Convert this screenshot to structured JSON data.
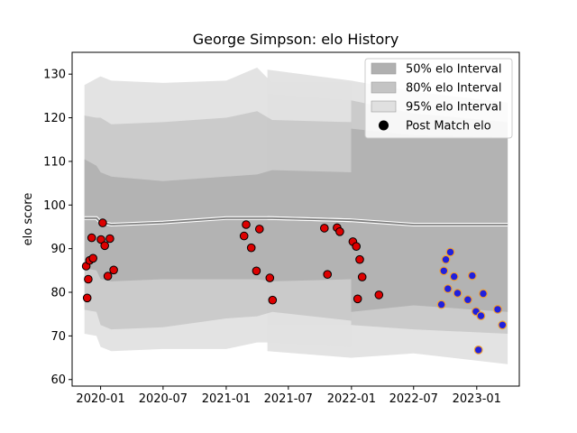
{
  "chart_data": {
    "type": "scatter",
    "title": "George Simpson: elo History",
    "xlabel": "",
    "ylabel": "elo score",
    "xlim": [
      "2019-10-10",
      "2023-05-05"
    ],
    "ylim": [
      58.5,
      135
    ],
    "x_ticks": [
      "2020-01-01",
      "2020-07-01",
      "2021-01-01",
      "2021-07-01",
      "2022-01-01",
      "2022-07-01",
      "2023-01-01"
    ],
    "x_tick_labels": [
      "2020-01",
      "2020-07",
      "2021-01",
      "2021-07",
      "2022-01",
      "2022-07",
      "2023-01"
    ],
    "y_ticks": [
      60,
      70,
      80,
      90,
      100,
      110,
      120,
      130
    ],
    "y_tick_labels": [
      "60",
      "70",
      "80",
      "90",
      "100",
      "110",
      "120",
      "130"
    ],
    "legend_position": "top-right",
    "legend": [
      {
        "label": "50% elo Interval",
        "color": "#b0b0b0",
        "kind": "patch"
      },
      {
        "label": "80% elo Interval",
        "color": "#c4c4c4",
        "kind": "patch"
      },
      {
        "label": "95% elo Interval",
        "color": "#e0e0e0",
        "kind": "patch"
      },
      {
        "label": "Post Match elo",
        "color": "#000000",
        "kind": "marker"
      }
    ],
    "colors": {
      "band50": "#b0b0b0",
      "band80": "#c8c8c8",
      "band95": "#e2e2e2",
      "mean_line": "#808080",
      "past_fill": "#dd0000",
      "past_edge": "#000000",
      "future_fill": "#2020dd",
      "future_edge": "#f0a030"
    },
    "history_bands": {
      "x": [
        "2019-11-15",
        "2019-12-20",
        "2020-01-01",
        "2020-02-01",
        "2020-07-01",
        "2021-01-01",
        "2021-04-01",
        "2021-05-15",
        "2021-12-31"
      ],
      "mean": [
        97.0,
        97.0,
        96.0,
        95.5,
        96.0,
        97.0,
        97.0,
        97.0,
        96.5
      ],
      "p50": [
        [
          85.5,
          110.5
        ],
        [
          85.0,
          109.0
        ],
        [
          83.0,
          107.5
        ],
        [
          82.5,
          106.5
        ],
        [
          83.0,
          105.5
        ],
        [
          83.0,
          106.5
        ],
        [
          83.0,
          107.0
        ],
        [
          82.5,
          108.0
        ],
        [
          83.0,
          107.5
        ]
      ],
      "p80": [
        [
          76.0,
          120.5
        ],
        [
          75.5,
          120.0
        ],
        [
          72.5,
          120.0
        ],
        [
          71.5,
          118.5
        ],
        [
          72.0,
          119.0
        ],
        [
          74.0,
          120.0
        ],
        [
          74.5,
          121.5
        ],
        [
          75.5,
          119.5
        ],
        [
          73.5,
          119.0
        ]
      ],
      "p95": [
        [
          70.5,
          127.5
        ],
        [
          70.0,
          129.0
        ],
        [
          67.5,
          129.5
        ],
        [
          66.5,
          128.5
        ],
        [
          67.0,
          128.0
        ],
        [
          67.0,
          128.5
        ],
        [
          68.5,
          131.5
        ],
        [
          68.5,
          128.0
        ],
        [
          67.5,
          128.0
        ]
      ]
    },
    "forecast_bands": {
      "x": [
        "2021-05-01",
        "2021-12-31",
        "2022-07-01",
        "2023-04-01"
      ],
      "mean": [
        97.0,
        96.5,
        95.5,
        95.5
      ],
      "p50": [
        [
          76.0,
          118.5
        ],
        [
          75.5,
          117.5
        ],
        [
          77.0,
          116.0
        ],
        [
          75.5,
          115.5
        ]
      ],
      "p80": [
        [
          72.5,
          125.5
        ],
        [
          72.5,
          124.0
        ],
        [
          71.5,
          121.0
        ],
        [
          70.5,
          119.0
        ]
      ],
      "p95": [
        [
          66.5,
          131.0
        ],
        [
          65.0,
          128.5
        ],
        [
          66.0,
          126.0
        ],
        [
          63.5,
          123.5
        ]
      ]
    },
    "series": [
      {
        "name": "Post Match elo",
        "points": [
          [
            "2019-11-20",
            86.0
          ],
          [
            "2019-11-23",
            78.7
          ],
          [
            "2019-11-26",
            83.0
          ],
          [
            "2019-11-30",
            87.3
          ],
          [
            "2019-12-06",
            92.5
          ],
          [
            "2019-12-10",
            87.8
          ],
          [
            "2020-01-02",
            92.1
          ],
          [
            "2020-01-07",
            95.9
          ],
          [
            "2020-01-13",
            90.7
          ],
          [
            "2020-01-22",
            83.7
          ],
          [
            "2020-01-28",
            92.3
          ],
          [
            "2020-02-08",
            85.1
          ],
          [
            "2021-02-22",
            92.9
          ],
          [
            "2021-02-28",
            95.5
          ],
          [
            "2021-03-15",
            90.2
          ],
          [
            "2021-03-30",
            84.9
          ],
          [
            "2021-04-08",
            94.5
          ],
          [
            "2021-05-08",
            83.3
          ],
          [
            "2021-05-16",
            78.2
          ],
          [
            "2021-10-14",
            94.7
          ],
          [
            "2021-10-23",
            84.1
          ],
          [
            "2021-11-20",
            94.8
          ],
          [
            "2021-11-28",
            93.9
          ],
          [
            "2022-01-05",
            91.6
          ],
          [
            "2022-01-15",
            90.5
          ],
          [
            "2022-01-19",
            78.5
          ],
          [
            "2022-01-25",
            87.5
          ],
          [
            "2022-02-01",
            83.5
          ],
          [
            "2022-03-22",
            79.4
          ]
        ]
      },
      {
        "name": "",
        "points": [
          [
            "2022-09-20",
            77.2
          ],
          [
            "2022-09-27",
            84.9
          ],
          [
            "2022-10-03",
            87.5
          ],
          [
            "2022-10-09",
            80.8
          ],
          [
            "2022-10-16",
            89.2
          ],
          [
            "2022-10-27",
            83.6
          ],
          [
            "2022-11-06",
            79.8
          ],
          [
            "2022-12-06",
            78.3
          ],
          [
            "2022-12-19",
            83.8
          ],
          [
            "2022-12-30",
            75.6
          ],
          [
            "2023-01-06",
            66.8
          ],
          [
            "2023-01-13",
            74.6
          ],
          [
            "2023-01-20",
            79.7
          ],
          [
            "2023-03-03",
            76.1
          ],
          [
            "2023-03-17",
            72.5
          ]
        ]
      }
    ]
  }
}
